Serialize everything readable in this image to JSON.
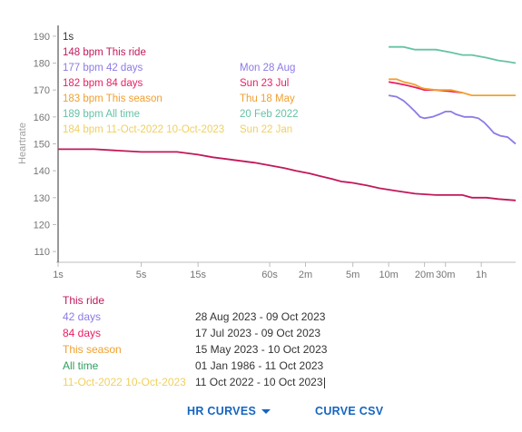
{
  "chart_data": {
    "type": "line",
    "ylabel": "Heartrate",
    "ylim": [
      106,
      194
    ],
    "y_ticks": [
      110,
      120,
      130,
      140,
      150,
      160,
      170,
      180,
      190
    ],
    "x_scale": "log",
    "x_unit": "seconds",
    "x_ticks": [
      {
        "label": "1s",
        "value": 1
      },
      {
        "label": "5s",
        "value": 5
      },
      {
        "label": "15s",
        "value": 15
      },
      {
        "label": "60s",
        "value": 60
      },
      {
        "label": "2m",
        "value": 120
      },
      {
        "label": "5m",
        "value": 300
      },
      {
        "label": "10m",
        "value": 600
      },
      {
        "label": "20m",
        "value": 1200
      },
      {
        "label": "30m",
        "value": 1800
      },
      {
        "label": "1h",
        "value": 3600
      }
    ],
    "xlim": [
      1,
      7000
    ],
    "cursor_label": "1s",
    "series": [
      {
        "name": "This ride",
        "color": "#c2185b",
        "legend_value": "148 bpm",
        "legend_date": "",
        "x": [
          1,
          2,
          5,
          10,
          15,
          20,
          30,
          45,
          60,
          80,
          100,
          130,
          160,
          200,
          240,
          300,
          400,
          500,
          700,
          1000,
          1500,
          2500,
          3000,
          4000,
          5000,
          7000
        ],
        "y": [
          148,
          148,
          147,
          147,
          146,
          145,
          144,
          143,
          142,
          141,
          140,
          139,
          138,
          137,
          136,
          135.5,
          134.5,
          133.5,
          132.5,
          131.5,
          131,
          131,
          130,
          130,
          129.5,
          129
        ]
      },
      {
        "name": "42 days",
        "color": "#8c7ae6",
        "legend_value": "177 bpm",
        "legend_date": "Mon 28 Aug",
        "x": [
          600,
          700,
          800,
          900,
          1000,
          1100,
          1200,
          1400,
          1600,
          1800,
          2000,
          2200,
          2600,
          3000,
          3400,
          3800,
          4200,
          4600,
          5200,
          6000,
          7000
        ],
        "y": [
          168,
          167.5,
          166,
          164,
          162,
          160,
          159.5,
          160,
          161,
          162,
          162,
          161,
          160,
          160,
          159.5,
          158,
          156,
          154,
          153,
          152.5,
          150
        ]
      },
      {
        "name": "84 days",
        "color": "#e91e63",
        "legend_value": "182 bpm",
        "legend_date": "Sun 23 Jul",
        "x": [
          600,
          700,
          800,
          900,
          1000,
          1100,
          1200,
          1500,
          2000,
          2500
        ],
        "y": [
          173,
          172.5,
          172,
          171.5,
          171,
          170.5,
          170,
          170,
          169.5,
          169
        ]
      },
      {
        "name": "This season",
        "color": "#f0a030",
        "legend_value": "183 bpm",
        "legend_date": "Thu 18 May",
        "x": [
          600,
          700,
          800,
          900,
          1000,
          1100,
          1200,
          1500,
          2000,
          2500,
          3000,
          4000,
          5000,
          7000
        ],
        "y": [
          174,
          174,
          173,
          172.5,
          172,
          171,
          170.5,
          170,
          170,
          169,
          168,
          168,
          168,
          168
        ]
      },
      {
        "name": "All time",
        "color": "#66c2a5",
        "legend_value": "189 bpm",
        "legend_date": "20 Feb 2022",
        "x": [
          600,
          800,
          1000,
          1500,
          2000,
          2500,
          3000,
          4000,
          5000,
          6000,
          7000
        ],
        "y": [
          186,
          186,
          185,
          185,
          184,
          183,
          183,
          182,
          181,
          180.5,
          180
        ]
      },
      {
        "name": "11-Oct-2022 10-Oct-2023",
        "color": "#f0d060",
        "legend_value": "184 bpm",
        "legend_date": "Sun 22 Jan",
        "x": [],
        "y": []
      }
    ]
  },
  "ranges": [
    {
      "name": "This ride",
      "color": "#c2185b",
      "dates": ""
    },
    {
      "name": "42 days",
      "color": "#8c7ae6",
      "dates": "28 Aug 2023  - 09 Oct 2023"
    },
    {
      "name": "84 days",
      "color": "#e91e63",
      "dates": "17 Jul 2023  - 09 Oct 2023"
    },
    {
      "name": "This season",
      "color": "#f0a030",
      "dates": "15 May 2023 - 10 Oct 2023"
    },
    {
      "name": "All time",
      "color": "#2e9e5e",
      "dates": "01 Jan 1986  - 11 Oct 2023"
    },
    {
      "name": "11-Oct-2022 10-Oct-2023",
      "color": "#f0d060",
      "dates": "11 Oct 2022  - 10 Oct 2023"
    }
  ],
  "actions": {
    "hr_curves": "HR CURVES",
    "curve_csv": "CURVE CSV"
  }
}
